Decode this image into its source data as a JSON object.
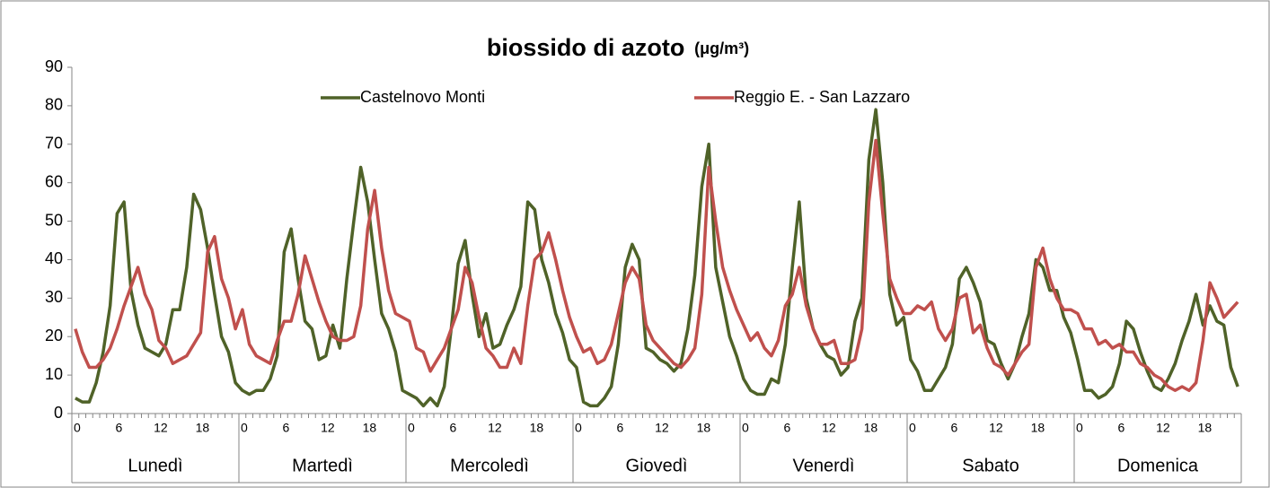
{
  "chart_data": {
    "type": "line",
    "title": "biossido di azoto",
    "unit": "(μg/m³)",
    "categories": [
      "0",
      null,
      null,
      null,
      null,
      null,
      "6",
      null,
      null,
      null,
      null,
      null,
      "12",
      null,
      null,
      null,
      null,
      null,
      "18",
      null,
      null,
      null,
      null,
      null,
      "0",
      null,
      null,
      null,
      null,
      null,
      "6",
      null,
      null,
      null,
      null,
      null,
      "12",
      null,
      null,
      null,
      null,
      null,
      "18",
      null,
      null,
      null,
      null,
      null,
      "0",
      null,
      null,
      null,
      null,
      null,
      "6",
      null,
      null,
      null,
      null,
      null,
      "12",
      null,
      null,
      null,
      null,
      null,
      "18",
      null,
      null,
      null,
      null,
      null,
      "0",
      null,
      null,
      null,
      null,
      null,
      "6",
      null,
      null,
      null,
      null,
      null,
      "12",
      null,
      null,
      null,
      null,
      null,
      "18",
      null,
      null,
      null,
      null,
      null,
      "0",
      null,
      null,
      null,
      null,
      null,
      "6",
      null,
      null,
      null,
      null,
      null,
      "12",
      null,
      null,
      null,
      null,
      null,
      "18",
      null,
      null,
      null,
      null,
      null,
      "0",
      null,
      null,
      null,
      null,
      null,
      "6",
      null,
      null,
      null,
      null,
      null,
      "12",
      null,
      null,
      null,
      null,
      null,
      "18",
      null,
      null,
      null,
      null,
      null,
      "0",
      null,
      null,
      null,
      null,
      null,
      "6",
      null,
      null,
      null,
      null,
      null,
      "12",
      null,
      null,
      null,
      null,
      null,
      "18",
      null,
      null,
      null,
      null,
      null
    ],
    "groups": [
      "Lunedì",
      "Martedì",
      "Mercoledì",
      "Giovedì",
      "Venerdì",
      "Sabato",
      "Domenica"
    ],
    "series": [
      {
        "name": "Castelnovo Monti",
        "color": "#4f6228",
        "values": [
          4,
          3,
          3,
          8,
          16,
          28,
          52,
          55,
          32,
          23,
          17,
          16,
          15,
          18,
          27,
          27,
          38,
          57,
          53,
          43,
          31,
          20,
          16,
          8,
          6,
          5,
          6,
          6,
          9,
          15,
          42,
          48,
          35,
          24,
          22,
          14,
          15,
          23,
          17,
          35,
          50,
          64,
          55,
          40,
          26,
          22,
          16,
          6,
          5,
          4,
          2,
          4,
          2,
          7,
          22,
          39,
          45,
          31,
          20,
          26,
          17,
          18,
          23,
          27,
          33,
          55,
          53,
          40,
          34,
          26,
          21,
          14,
          12,
          3,
          2,
          2,
          4,
          7,
          18,
          38,
          44,
          40,
          17,
          16,
          14,
          13,
          11,
          13,
          22,
          36,
          59,
          70,
          38,
          29,
          20,
          15,
          9,
          6,
          5,
          5,
          9,
          8,
          18,
          38,
          55,
          30,
          22,
          18,
          15,
          14,
          10,
          12,
          24,
          30,
          66,
          79,
          60,
          31,
          23,
          25,
          14,
          11,
          6,
          6,
          9,
          12,
          18,
          35,
          38,
          34,
          29,
          19,
          18,
          13,
          9,
          13,
          20,
          26,
          40,
          38,
          32,
          32,
          25,
          21,
          14,
          6,
          6,
          4,
          5,
          7,
          13,
          24,
          22,
          16,
          11,
          7,
          6,
          9,
          13,
          19,
          24,
          31,
          23,
          28,
          24,
          23,
          12,
          7
        ]
      },
      {
        "name": "Reggio E. - San Lazzaro",
        "color": "#c0504d",
        "values": [
          22,
          16,
          12,
          12,
          14,
          17,
          22,
          28,
          33,
          38,
          31,
          27,
          19,
          17,
          13,
          14,
          15,
          18,
          21,
          42,
          46,
          35,
          30,
          22,
          27,
          18,
          15,
          14,
          13,
          19,
          24,
          24,
          31,
          41,
          35,
          29,
          24,
          20,
          19,
          19,
          20,
          28,
          48,
          58,
          43,
          32,
          26,
          25,
          24,
          17,
          16,
          11,
          14,
          17,
          22,
          27,
          38,
          34,
          25,
          17,
          15,
          12,
          12,
          17,
          13,
          28,
          40,
          42,
          47,
          40,
          32,
          25,
          20,
          16,
          17,
          13,
          14,
          18,
          26,
          34,
          38,
          35,
          23,
          19,
          17,
          15,
          13,
          12,
          14,
          17,
          31,
          64,
          50,
          38,
          32,
          27,
          23,
          19,
          21,
          17,
          15,
          19,
          28,
          31,
          38,
          28,
          22,
          18,
          18,
          19,
          13,
          13,
          14,
          22,
          55,
          71,
          52,
          35,
          30,
          26,
          26,
          28,
          27,
          29,
          22,
          19,
          22,
          30,
          31,
          21,
          23,
          17,
          13,
          12,
          10,
          13,
          16,
          18,
          38,
          43,
          35,
          30,
          27,
          27,
          26,
          22,
          22,
          18,
          19,
          17,
          18,
          16,
          16,
          13,
          12,
          10,
          9,
          7,
          6,
          7,
          6,
          8,
          19,
          34,
          30,
          25,
          27,
          29
        ]
      }
    ],
    "ylim": [
      0,
      90
    ],
    "yticks": [
      0,
      10,
      20,
      30,
      40,
      50,
      60,
      70,
      80,
      90
    ],
    "grid": false,
    "legend": "top"
  }
}
